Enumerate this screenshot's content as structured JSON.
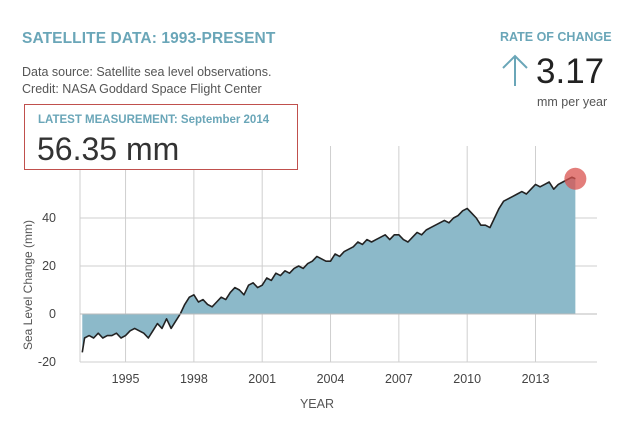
{
  "header": {
    "title": "SATELLITE DATA: 1993-PRESENT",
    "source_line1": "Data source: Satellite sea level observations.",
    "source_line2": "Credit: NASA Goddard Space Flight Center"
  },
  "rate": {
    "label": "RATE OF CHANGE",
    "value": "3.17",
    "unit": "mm per year",
    "direction": "up"
  },
  "latest": {
    "label": "LATEST MEASUREMENT: September 2014",
    "value": "56.35 mm"
  },
  "colors": {
    "accent": "#6aa6b8",
    "fill": "#8cb9c9",
    "line": "#222222",
    "marker": "#d9534f",
    "box_border": "#c0504d"
  },
  "chart_data": {
    "type": "area",
    "title": "",
    "xlabel": "YEAR",
    "ylabel": "Sea Level Change (mm)",
    "xlim": [
      1993,
      2015.7
    ],
    "ylim": [
      -20,
      70
    ],
    "x_ticks": [
      1995,
      1998,
      2001,
      2004,
      2007,
      2010,
      2013
    ],
    "y_ticks": [
      -20,
      0,
      20,
      40
    ],
    "x_tick_labels": [
      "1995",
      "1998",
      "2001",
      "2004",
      "2007",
      "2010",
      "2013"
    ],
    "y_tick_labels": [
      "-20",
      "0",
      "20",
      "40"
    ],
    "grid": true,
    "series": [
      {
        "name": "Sea level change",
        "x": [
          1993.1,
          1993.2,
          1993.4,
          1993.6,
          1993.8,
          1994.0,
          1994.2,
          1994.4,
          1994.6,
          1994.8,
          1995.0,
          1995.2,
          1995.4,
          1995.6,
          1995.8,
          1996.0,
          1996.2,
          1996.4,
          1996.6,
          1996.8,
          1997.0,
          1997.2,
          1997.4,
          1997.6,
          1997.8,
          1998.0,
          1998.2,
          1998.4,
          1998.6,
          1998.8,
          1999.0,
          1999.2,
          1999.4,
          1999.6,
          1999.8,
          2000.0,
          2000.2,
          2000.4,
          2000.6,
          2000.8,
          2001.0,
          2001.2,
          2001.4,
          2001.6,
          2001.8,
          2002.0,
          2002.2,
          2002.4,
          2002.6,
          2002.8,
          2003.0,
          2003.2,
          2003.4,
          2003.6,
          2003.8,
          2004.0,
          2004.2,
          2004.4,
          2004.6,
          2004.8,
          2005.0,
          2005.2,
          2005.4,
          2005.6,
          2005.8,
          2006.0,
          2006.2,
          2006.4,
          2006.6,
          2006.8,
          2007.0,
          2007.2,
          2007.4,
          2007.6,
          2007.8,
          2008.0,
          2008.2,
          2008.4,
          2008.6,
          2008.8,
          2009.0,
          2009.2,
          2009.4,
          2009.6,
          2009.8,
          2010.0,
          2010.2,
          2010.4,
          2010.6,
          2010.8,
          2011.0,
          2011.2,
          2011.4,
          2011.6,
          2011.8,
          2012.0,
          2012.2,
          2012.4,
          2012.6,
          2012.8,
          2013.0,
          2013.2,
          2013.4,
          2013.6,
          2013.8,
          2014.0,
          2014.2,
          2014.4,
          2014.6,
          2014.75
        ],
        "values": [
          -16,
          -10,
          -9,
          -10,
          -8,
          -10,
          -9,
          -9,
          -8,
          -10,
          -9,
          -7,
          -6,
          -7,
          -8,
          -10,
          -7,
          -4,
          -6,
          -2,
          -6,
          -3,
          0,
          4,
          7,
          8,
          5,
          6,
          4,
          3,
          5,
          7,
          6,
          9,
          11,
          10,
          8,
          12,
          13,
          11,
          12,
          15,
          14,
          17,
          16,
          18,
          17,
          19,
          20,
          19,
          21,
          22,
          24,
          23,
          22,
          22,
          25,
          24,
          26,
          27,
          28,
          30,
          29,
          31,
          30,
          31,
          32,
          33,
          31,
          33,
          33,
          31,
          30,
          32,
          34,
          33,
          35,
          36,
          37,
          38,
          39,
          38,
          40,
          41,
          43,
          44,
          42,
          40,
          37,
          37,
          36,
          40,
          44,
          47,
          48,
          49,
          50,
          51,
          50,
          52,
          54,
          53,
          54,
          55,
          52,
          54,
          55,
          56,
          57,
          56.35
        ]
      }
    ],
    "latest_point": {
      "x": 2014.75,
      "y": 56.35
    }
  }
}
